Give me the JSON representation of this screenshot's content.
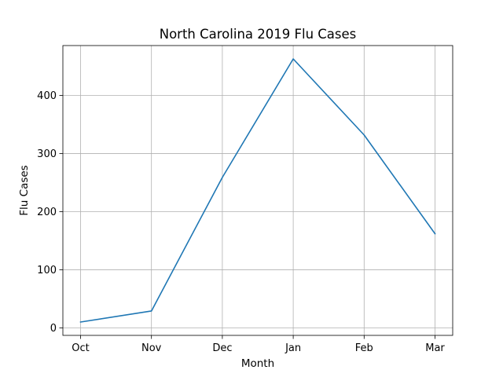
{
  "chart_data": {
    "type": "line",
    "title": "North Carolina 2019 Flu Cases",
    "xlabel": "Month",
    "ylabel": "Flu Cases",
    "categories": [
      "Oct",
      "Nov",
      "Dec",
      "Jan",
      "Feb",
      "Mar"
    ],
    "series": [
      {
        "values": [
          10,
          29,
          259,
          463,
          332,
          162
        ],
        "color": "#1f77b4"
      }
    ],
    "yticks": [
      0,
      100,
      200,
      300,
      400
    ],
    "ytick_labels": [
      "0",
      "100",
      "200",
      "300",
      "400"
    ],
    "ylim": [
      -13,
      486
    ],
    "grid": true
  }
}
